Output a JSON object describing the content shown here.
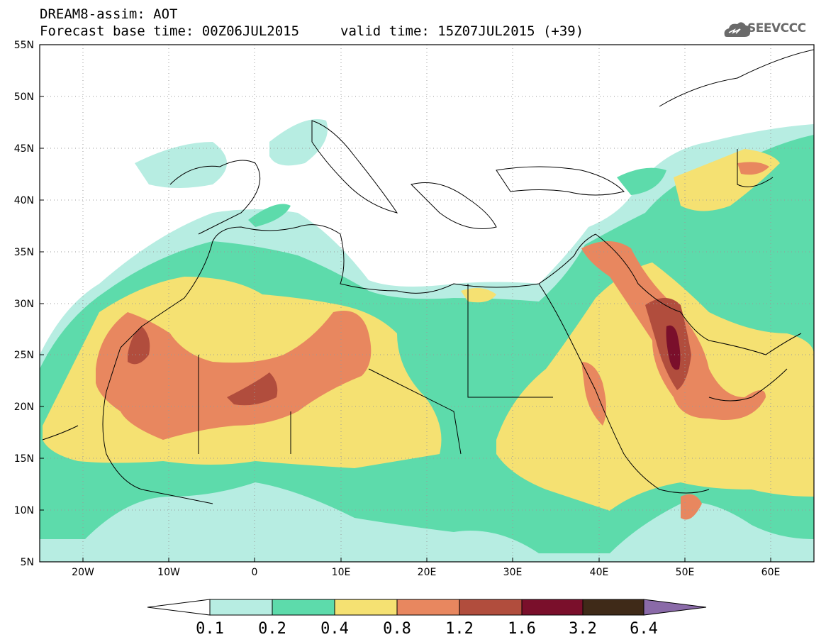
{
  "header": {
    "title": "DREAM8-assim: AOT",
    "base_time": "Forecast base time: 00Z06JUL2015",
    "valid_time": "valid time: 15Z07JUL2015 (+39)",
    "logo_text": "SEEVCCC"
  },
  "map": {
    "lon_range": [
      -25,
      65
    ],
    "lat_range": [
      5,
      55
    ],
    "lon_ticks": [
      "20W",
      "10W",
      "0",
      "10E",
      "20E",
      "30E",
      "40E",
      "50E",
      "60E"
    ],
    "lat_ticks": [
      "55N",
      "50N",
      "45N",
      "40N",
      "35N",
      "30N",
      "25N",
      "20N",
      "15N",
      "10N",
      "5N"
    ],
    "grid": true
  },
  "colorbar": {
    "labels": [
      "0.1",
      "0.2",
      "0.4",
      "0.8",
      "1.2",
      "1.6",
      "3.2",
      "6.4"
    ],
    "colors": [
      "#b7ede2",
      "#5ddbab",
      "#f5e172",
      "#e8875f",
      "#b14d3d",
      "#7a0f2b",
      "#3f2a18"
    ],
    "under_color": "#ffffff",
    "over_color": "#8a6aa8"
  },
  "colors": {
    "c01": "#b7ede2",
    "c02": "#5ddbab",
    "c04": "#f5e172",
    "c08": "#e8875f",
    "c12": "#b14d3d",
    "c16": "#7a0f2b",
    "c32": "#3f2a18",
    "c64": "#8a6aa8"
  }
}
